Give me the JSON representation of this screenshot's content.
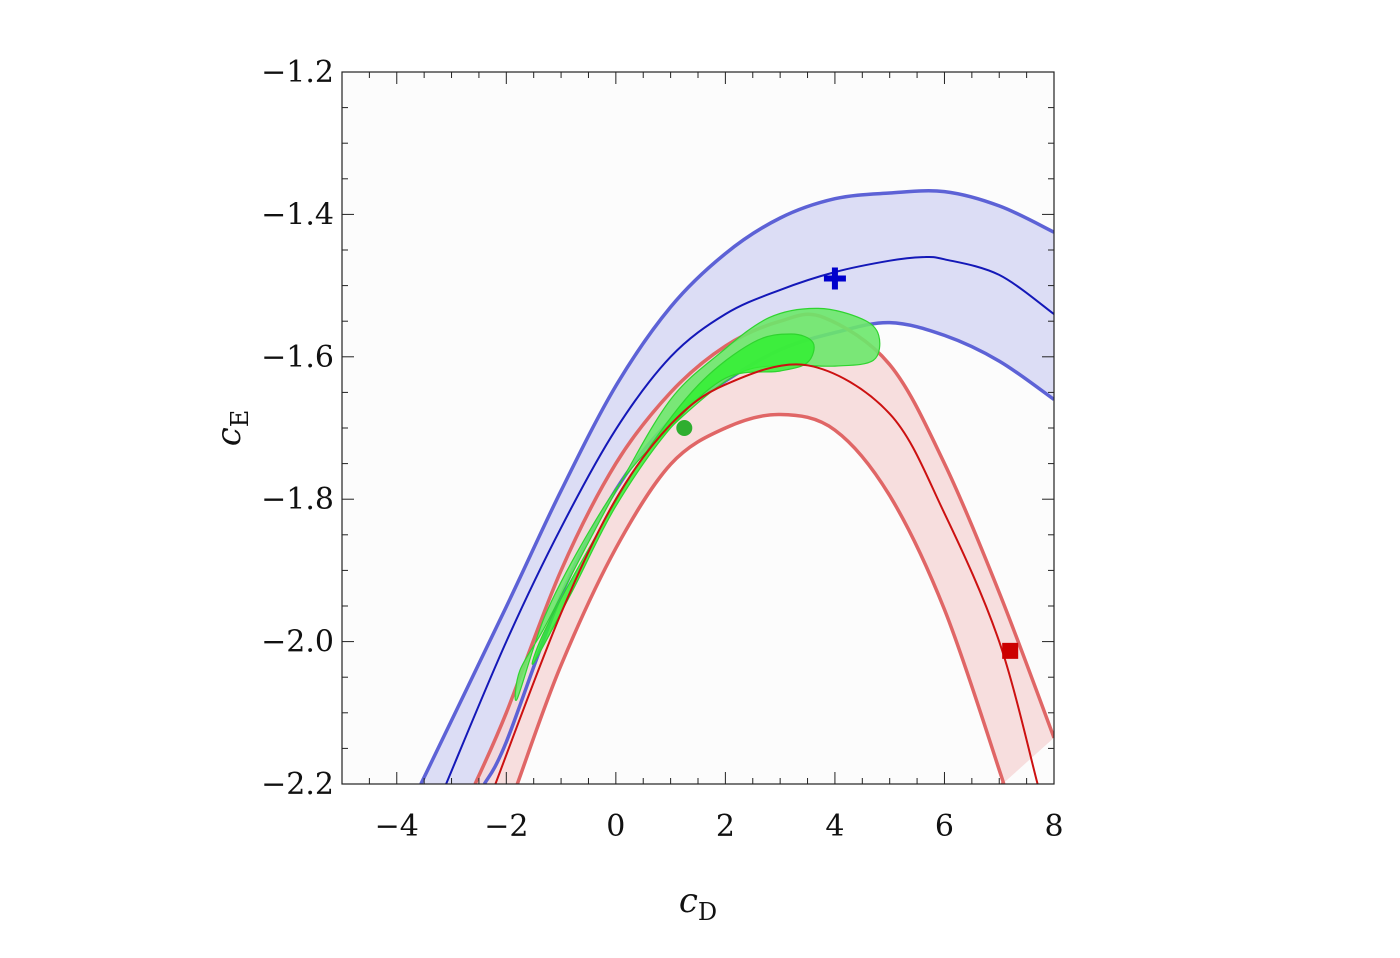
{
  "chart_data": {
    "type": "area",
    "title": "",
    "xlabel": "c",
    "xlabel_subscript": "D",
    "ylabel": "c",
    "ylabel_subscript": "E",
    "xlim": [
      -5,
      8
    ],
    "ylim": [
      -2.2,
      -1.2
    ],
    "x_ticks": [
      -4,
      -2,
      0,
      2,
      4,
      6,
      8
    ],
    "x_tick_labels": [
      "−4",
      "−2",
      "0",
      "2",
      "4",
      "6",
      "8"
    ],
    "y_ticks": [
      -2.2,
      -2.0,
      -1.8,
      -1.6,
      -1.4,
      -1.2
    ],
    "y_tick_labels": [
      "−2.2",
      "−2.0",
      "−1.8",
      "−1.6",
      "−1.4",
      "−1.2"
    ],
    "grid": false,
    "legend": "none",
    "series": [
      {
        "color": "#5d62d6",
        "fill": "#dcddf5",
        "upper": [
          [
            -3.56,
            -2.2
          ],
          [
            -2,
            -1.951
          ],
          [
            -1,
            -1.788
          ],
          [
            0,
            -1.641
          ],
          [
            1,
            -1.53
          ],
          [
            2,
            -1.455
          ],
          [
            3,
            -1.405
          ],
          [
            4,
            -1.378
          ],
          [
            5,
            -1.37
          ],
          [
            6,
            -1.368
          ],
          [
            7,
            -1.388
          ],
          [
            8,
            -1.425
          ]
        ],
        "center": [
          [
            -3.1,
            -2.2
          ],
          [
            -2,
            -2.0
          ],
          [
            -1,
            -1.84
          ],
          [
            0,
            -1.702
          ],
          [
            1,
            -1.6
          ],
          [
            2,
            -1.54
          ],
          [
            3,
            -1.506
          ],
          [
            4,
            -1.481
          ],
          [
            5,
            -1.465
          ],
          [
            5.6,
            -1.46
          ],
          [
            6,
            -1.463
          ],
          [
            7,
            -1.485
          ],
          [
            8,
            -1.54
          ]
        ],
        "lower": [
          [
            -2.4,
            -2.2
          ],
          [
            -2,
            -2.141
          ],
          [
            -1,
            -1.935
          ],
          [
            0,
            -1.787
          ],
          [
            1,
            -1.689
          ],
          [
            2,
            -1.634
          ],
          [
            3,
            -1.59
          ],
          [
            4,
            -1.566
          ],
          [
            5,
            -1.552
          ],
          [
            6,
            -1.57
          ],
          [
            7,
            -1.606
          ],
          [
            8,
            -1.66
          ]
        ]
      },
      {
        "color": "#e06666",
        "fill": "#f6d8d8",
        "upper": [
          [
            -2.57,
            -2.2
          ],
          [
            -2,
            -2.1
          ],
          [
            -1,
            -1.9
          ],
          [
            0,
            -1.75
          ],
          [
            1,
            -1.65
          ],
          [
            2,
            -1.585
          ],
          [
            3,
            -1.55
          ],
          [
            3.8,
            -1.545
          ],
          [
            5,
            -1.611
          ],
          [
            6,
            -1.75
          ],
          [
            7,
            -1.931
          ],
          [
            8,
            -2.135
          ]
        ],
        "center": [
          [
            -2.2,
            -2.2
          ],
          [
            -1,
            -1.96
          ],
          [
            0,
            -1.8
          ],
          [
            1,
            -1.695
          ],
          [
            2,
            -1.639
          ],
          [
            3.5,
            -1.612
          ],
          [
            5,
            -1.68
          ],
          [
            6,
            -1.82
          ],
          [
            7,
            -2.0
          ],
          [
            7.7,
            -2.2
          ]
        ],
        "lower": [
          [
            -1.8,
            -2.2
          ],
          [
            -1,
            -2.033
          ],
          [
            0,
            -1.869
          ],
          [
            1,
            -1.751
          ],
          [
            2,
            -1.7
          ],
          [
            3,
            -1.681
          ],
          [
            4,
            -1.703
          ],
          [
            5,
            -1.795
          ],
          [
            6,
            -1.955
          ],
          [
            7,
            -2.18
          ],
          [
            7.06,
            -2.2
          ]
        ]
      },
      {
        "color": "#2fd42f",
        "fill": "#6be86b",
        "outer_region": [
          [
            -1.8,
            -2.08
          ],
          [
            -1.3,
            -1.965
          ],
          [
            -0.6,
            -1.86
          ],
          [
            0.2,
            -1.765
          ],
          [
            1.2,
            -1.685
          ],
          [
            2.2,
            -1.625
          ],
          [
            3.0,
            -1.612
          ],
          [
            4.0,
            -1.613
          ],
          [
            4.7,
            -1.605
          ],
          [
            4.8,
            -1.57
          ],
          [
            4.5,
            -1.547
          ],
          [
            3.7,
            -1.532
          ],
          [
            2.8,
            -1.545
          ],
          [
            1.9,
            -1.595
          ],
          [
            1.0,
            -1.66
          ],
          [
            0.1,
            -1.775
          ],
          [
            -0.7,
            -1.89
          ],
          [
            -1.3,
            -1.98
          ],
          [
            -1.75,
            -2.04
          ]
        ],
        "inner_region": [
          [
            -1.5,
            -2.03
          ],
          [
            -0.8,
            -1.93
          ],
          [
            0,
            -1.81
          ],
          [
            1,
            -1.7
          ],
          [
            2,
            -1.63
          ],
          [
            3,
            -1.62
          ],
          [
            3.5,
            -1.608
          ],
          [
            3.6,
            -1.58
          ],
          [
            3.2,
            -1.568
          ],
          [
            2.5,
            -1.58
          ],
          [
            1.5,
            -1.64
          ],
          [
            0.5,
            -1.74
          ],
          [
            -0.5,
            -1.87
          ],
          [
            -1.3,
            -1.985
          ]
        ]
      }
    ],
    "markers": [
      {
        "shape": "plus",
        "x": 4.0,
        "y": -1.49,
        "color": "#0000cc"
      },
      {
        "shape": "circle",
        "x": 1.25,
        "y": -1.7,
        "color": "#2fae2f"
      },
      {
        "shape": "square",
        "x": 7.2,
        "y": -2.013,
        "color": "#cc0000"
      }
    ]
  }
}
